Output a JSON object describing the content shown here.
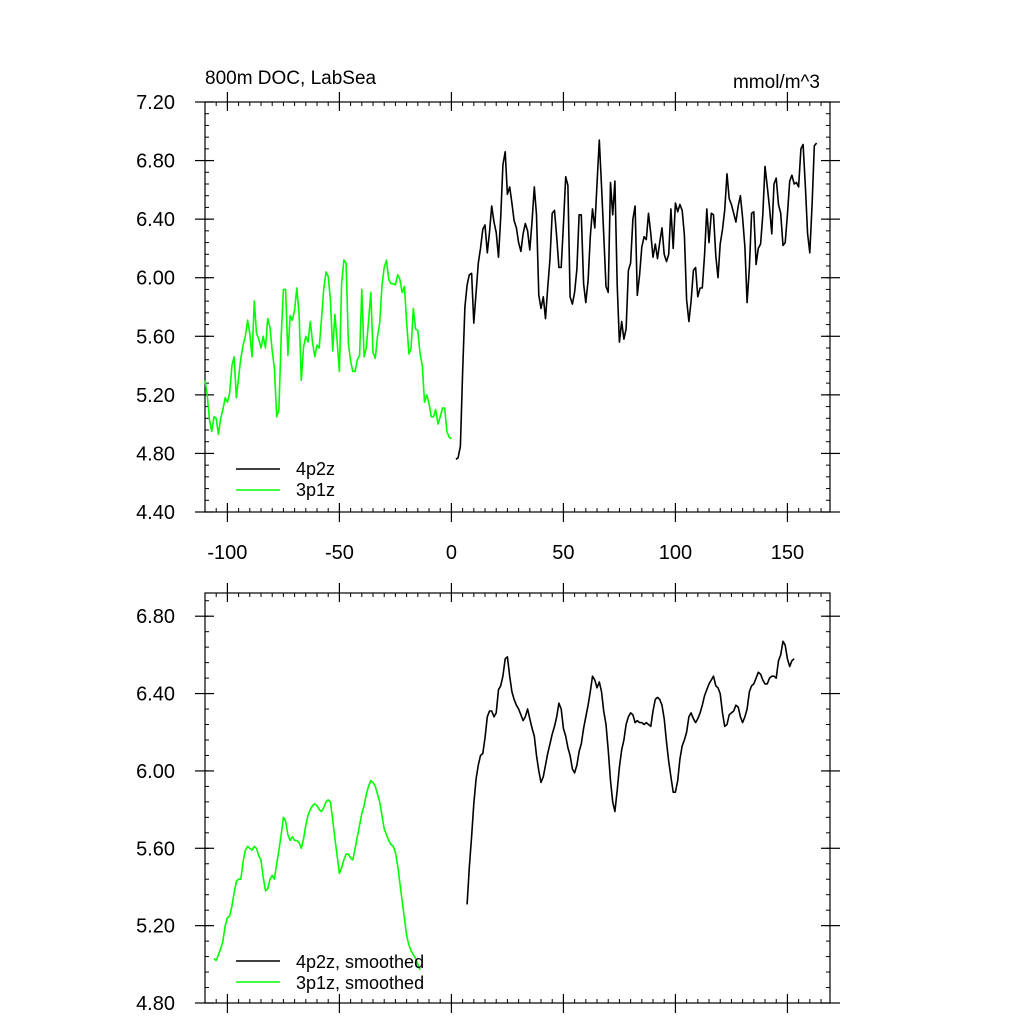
{
  "chart_data": [
    {
      "type": "line",
      "title": "800m DOC, LabSea",
      "units": "mmol/m^3",
      "xlim": [
        -110,
        169
      ],
      "ylim": [
        4.4,
        7.2
      ],
      "xticks": [
        -100,
        -50,
        0,
        50,
        100,
        150
      ],
      "xtick_labels": [
        "-100",
        "-50",
        "0",
        "50",
        "100",
        "150"
      ],
      "yticks": [
        4.4,
        4.8,
        5.2,
        5.6,
        6.0,
        6.4,
        6.8,
        7.2
      ],
      "ytick_labels": [
        "4.40",
        "4.80",
        "5.20",
        "5.60",
        "6.00",
        "6.40",
        "6.80",
        "7.20"
      ],
      "legend_position": "bottom-left",
      "series": [
        {
          "name": "4p2z",
          "color": "#000000",
          "x_start": 2,
          "x_step": 1,
          "values": [
            4.76,
            4.77,
            4.85,
            5.35,
            5.8,
            5.95,
            6.02,
            6.03,
            5.69,
            5.9,
            6.1,
            6.2,
            6.33,
            6.36,
            6.17,
            6.31,
            6.49,
            6.38,
            6.31,
            6.14,
            6.41,
            6.77,
            6.86,
            6.57,
            6.62,
            6.51,
            6.39,
            6.34,
            6.24,
            6.18,
            6.3,
            6.37,
            6.32,
            6.19,
            6.39,
            6.62,
            6.43,
            5.88,
            5.79,
            5.87,
            5.72,
            5.93,
            6.13,
            6.44,
            6.46,
            6.28,
            6.07,
            6.07,
            6.36,
            6.69,
            6.63,
            5.87,
            5.82,
            5.9,
            6.06,
            6.43,
            6.43,
            5.96,
            5.83,
            5.98,
            6.28,
            6.47,
            6.34,
            6.64,
            6.94,
            6.63,
            6.3,
            5.94,
            5.9,
            6.65,
            6.43,
            6.66,
            5.95,
            5.56,
            5.7,
            5.58,
            5.65,
            6.05,
            6.1,
            6.4,
            6.49,
            5.88,
            6.02,
            6.21,
            6.28,
            6.26,
            6.44,
            6.3,
            6.14,
            6.23,
            6.13,
            6.24,
            6.34,
            6.16,
            6.11,
            6.16,
            6.47,
            6.2,
            6.51,
            6.45,
            6.5,
            6.46,
            6.29,
            5.85,
            5.7,
            5.84,
            6.05,
            6.07,
            5.87,
            5.93,
            5.93,
            6.16,
            6.47,
            6.24,
            6.44,
            6.43,
            6.15,
            6.0,
            6.23,
            6.33,
            6.46,
            6.71,
            6.54,
            6.5,
            6.44,
            6.38,
            6.49,
            6.56,
            6.41,
            6.21,
            5.83,
            6.07,
            6.44,
            6.45,
            6.09,
            6.2,
            6.23,
            6.43,
            6.76,
            6.62,
            6.48,
            6.3,
            6.64,
            6.68,
            6.5,
            6.44,
            6.22,
            6.24,
            6.43,
            6.66,
            6.7,
            6.64,
            6.65,
            6.62,
            6.88,
            6.91,
            6.62,
            6.3,
            6.17,
            6.5,
            6.9,
            6.92
          ]
        },
        {
          "name": "3p1z",
          "color": "#00ff00",
          "x_start": -110,
          "x_step": 1,
          "values": [
            5.3,
            5.2,
            5.03,
            4.95,
            5.05,
            5.04,
            4.93,
            5.04,
            5.1,
            5.18,
            5.15,
            5.21,
            5.4,
            5.46,
            5.18,
            5.32,
            5.45,
            5.54,
            5.6,
            5.71,
            5.62,
            5.46,
            5.84,
            5.62,
            5.58,
            5.52,
            5.6,
            5.52,
            5.72,
            5.66,
            5.5,
            5.38,
            5.05,
            5.1,
            5.6,
            5.92,
            5.92,
            5.47,
            5.74,
            5.71,
            5.78,
            5.93,
            5.75,
            5.3,
            5.53,
            5.6,
            5.56,
            5.7,
            5.56,
            5.46,
            5.54,
            5.52,
            5.72,
            5.92,
            6.04,
            6.01,
            5.85,
            5.5,
            5.75,
            5.56,
            5.36,
            5.96,
            6.12,
            6.1,
            5.55,
            5.43,
            5.36,
            5.36,
            5.44,
            5.47,
            5.92,
            5.46,
            5.52,
            5.7,
            5.9,
            5.49,
            5.45,
            5.6,
            5.69,
            5.95,
            6.07,
            6.12,
            5.99,
            5.96,
            5.96,
            5.95,
            6.02,
            5.99,
            5.9,
            5.94,
            5.7,
            5.48,
            5.52,
            5.79,
            5.65,
            5.64,
            5.48,
            5.4,
            5.15,
            5.2,
            5.14,
            5.05,
            5.05,
            5.1,
            5.0,
            5.05,
            5.11,
            5.11,
            4.95,
            4.91,
            4.9
          ]
        }
      ]
    },
    {
      "type": "line",
      "title": "",
      "xlim": [
        -110,
        169
      ],
      "ylim": [
        4.8,
        6.92
      ],
      "xticks": [
        -100,
        -50,
        0,
        50,
        100,
        150
      ],
      "yticks": [
        4.8,
        5.2,
        5.6,
        6.0,
        6.4,
        6.8
      ],
      "ytick_labels": [
        "4.80",
        "5.20",
        "5.60",
        "6.00",
        "6.40",
        "6.80"
      ],
      "legend_position": "bottom-left",
      "series": [
        {
          "name": "4p2z, smoothed",
          "color": "#000000",
          "x_start": 7,
          "x_step": 1,
          "values": [
            5.31,
            5.5,
            5.66,
            5.83,
            5.96,
            6.03,
            6.08,
            6.09,
            6.17,
            6.28,
            6.31,
            6.31,
            6.28,
            6.3,
            6.42,
            6.44,
            6.49,
            6.58,
            6.59,
            6.49,
            6.41,
            6.37,
            6.34,
            6.32,
            6.29,
            6.26,
            6.28,
            6.32,
            6.27,
            6.22,
            6.18,
            6.08,
            6.0,
            5.94,
            5.97,
            6.03,
            6.09,
            6.14,
            6.19,
            6.23,
            6.28,
            6.35,
            6.32,
            6.22,
            6.18,
            6.12,
            6.08,
            6.01,
            5.99,
            6.03,
            6.1,
            6.14,
            6.22,
            6.28,
            6.34,
            6.41,
            6.49,
            6.47,
            6.43,
            6.46,
            6.41,
            6.31,
            6.24,
            6.11,
            5.95,
            5.84,
            5.79,
            5.9,
            6.02,
            6.11,
            6.16,
            6.24,
            6.28,
            6.3,
            6.29,
            6.25,
            6.26,
            6.25,
            6.25,
            6.24,
            6.25,
            6.24,
            6.23,
            6.31,
            6.37,
            6.38,
            6.37,
            6.34,
            6.27,
            6.15,
            6.05,
            5.97,
            5.89,
            5.89,
            5.95,
            6.06,
            6.13,
            6.16,
            6.2,
            6.28,
            6.3,
            6.27,
            6.25,
            6.27,
            6.3,
            6.34,
            6.39,
            6.42,
            6.45,
            6.47,
            6.49,
            6.44,
            6.43,
            6.4,
            6.3,
            6.23,
            6.24,
            6.29,
            6.3,
            6.31,
            6.34,
            6.33,
            6.28,
            6.25,
            6.28,
            6.32,
            6.41,
            6.44,
            6.45,
            6.48,
            6.51,
            6.5,
            6.47,
            6.45,
            6.45,
            6.48,
            6.49,
            6.49,
            6.48,
            6.57,
            6.6,
            6.67,
            6.65,
            6.58,
            6.54,
            6.57,
            6.58
          ]
        },
        {
          "name": "3p1z, smoothed",
          "color": "#00ff00",
          "x_start": -106,
          "x_step": 1,
          "values": [
            5.03,
            5.02,
            5.05,
            5.08,
            5.12,
            5.2,
            5.24,
            5.25,
            5.3,
            5.37,
            5.43,
            5.44,
            5.44,
            5.53,
            5.59,
            5.61,
            5.6,
            5.59,
            5.61,
            5.6,
            5.56,
            5.54,
            5.45,
            5.38,
            5.39,
            5.44,
            5.46,
            5.44,
            5.52,
            5.59,
            5.67,
            5.76,
            5.74,
            5.67,
            5.64,
            5.66,
            5.64,
            5.64,
            5.63,
            5.6,
            5.65,
            5.72,
            5.77,
            5.8,
            5.82,
            5.83,
            5.82,
            5.8,
            5.79,
            5.81,
            5.84,
            5.85,
            5.84,
            5.75,
            5.65,
            5.56,
            5.47,
            5.5,
            5.54,
            5.57,
            5.57,
            5.55,
            5.54,
            5.6,
            5.66,
            5.72,
            5.78,
            5.82,
            5.88,
            5.92,
            5.95,
            5.94,
            5.92,
            5.88,
            5.84,
            5.77,
            5.7,
            5.67,
            5.64,
            5.62,
            5.61,
            5.58,
            5.51,
            5.42,
            5.33,
            5.24,
            5.15,
            5.1,
            5.07,
            5.05,
            5.03,
            5.0,
            4.97
          ]
        }
      ]
    }
  ]
}
